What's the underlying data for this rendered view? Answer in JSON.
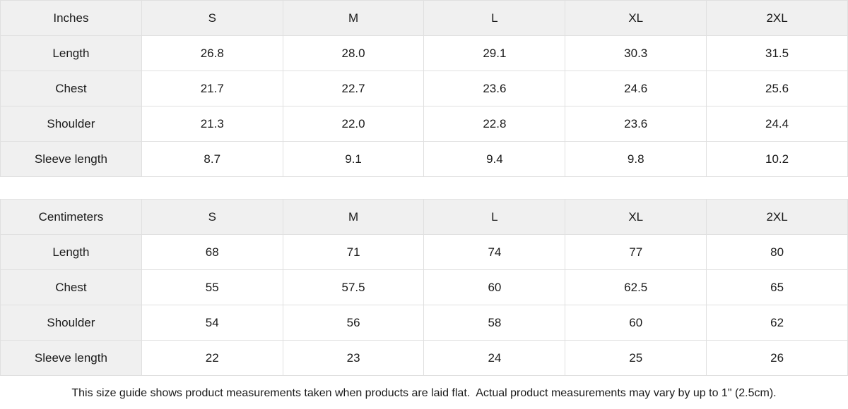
{
  "colors": {
    "header_and_label_bg": "#f0f0f0",
    "cell_border": "#e0e0e0",
    "text": "#1a1a1a",
    "background": "#ffffff"
  },
  "tables": [
    {
      "unit": "Inches",
      "sizes": [
        "S",
        "M",
        "L",
        "XL",
        "2XL"
      ],
      "rows": [
        {
          "label": "Length",
          "values": [
            "26.8",
            "28.0",
            "29.1",
            "30.3",
            "31.5"
          ]
        },
        {
          "label": "Chest",
          "values": [
            "21.7",
            "22.7",
            "23.6",
            "24.6",
            "25.6"
          ]
        },
        {
          "label": "Shoulder",
          "values": [
            "21.3",
            "22.0",
            "22.8",
            "23.6",
            "24.4"
          ]
        },
        {
          "label": "Sleeve length",
          "values": [
            "8.7",
            "9.1",
            "9.4",
            "9.8",
            "10.2"
          ]
        }
      ]
    },
    {
      "unit": "Centimeters",
      "sizes": [
        "S",
        "M",
        "L",
        "XL",
        "2XL"
      ],
      "rows": [
        {
          "label": "Length",
          "values": [
            "68",
            "71",
            "74",
            "77",
            "80"
          ]
        },
        {
          "label": "Chest",
          "values": [
            "55",
            "57.5",
            "60",
            "62.5",
            "65"
          ]
        },
        {
          "label": "Shoulder",
          "values": [
            "54",
            "56",
            "58",
            "60",
            "62"
          ]
        },
        {
          "label": "Sleeve length",
          "values": [
            "22",
            "23",
            "24",
            "25",
            "26"
          ]
        }
      ]
    }
  ],
  "footer": {
    "note": "This size guide shows product measurements taken when products are laid flat.  Actual product measurements may vary by up to 1\" (2.5cm)."
  }
}
